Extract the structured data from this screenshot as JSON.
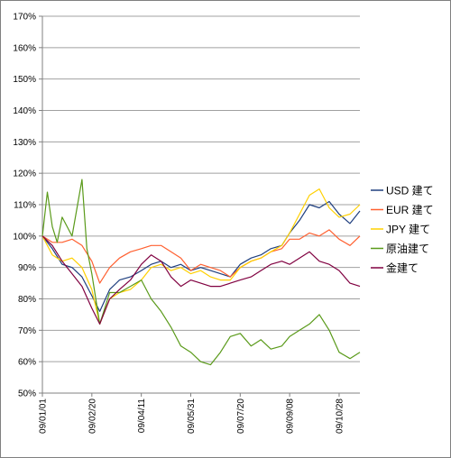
{
  "chart_data": {
    "type": "line",
    "title": "",
    "xlabel": "",
    "ylabel": "",
    "ylim": [
      50,
      170
    ],
    "y_ticks": [
      50,
      60,
      70,
      80,
      90,
      100,
      110,
      120,
      130,
      140,
      150,
      160,
      170
    ],
    "y_tick_format": "percent",
    "x_tick_labels": [
      "09/01/01",
      "09/02/20",
      "09/04/11",
      "09/05/31",
      "09/07/20",
      "09/09/08",
      "09/10/28"
    ],
    "grid": "horizontal",
    "legend_position": "right",
    "series": [
      {
        "name": "USD 建て",
        "color": "#1f3f7f",
        "x": [
          "09/01/01",
          "09/01/11",
          "09/01/21",
          "09/01/31",
          "09/02/10",
          "09/02/20",
          "09/02/28",
          "09/03/10",
          "09/03/20",
          "09/03/31",
          "09/04/11",
          "09/04/21",
          "09/05/01",
          "09/05/11",
          "09/05/21",
          "09/05/31",
          "09/06/10",
          "09/06/20",
          "09/06/30",
          "09/07/10",
          "09/07/20",
          "09/07/31",
          "09/08/10",
          "09/08/20",
          "09/08/31",
          "09/09/08",
          "09/09/18",
          "09/09/28",
          "09/10/08",
          "09/10/18",
          "09/10/28",
          "09/11/08",
          "09/11/18"
        ],
        "values": [
          100,
          96,
          91,
          90,
          87,
          81,
          76,
          83,
          86,
          87,
          89,
          91,
          92,
          90,
          91,
          89,
          90,
          89,
          88,
          87,
          91,
          93,
          94,
          96,
          97,
          101,
          105,
          110,
          109,
          111,
          107,
          104,
          108
        ]
      },
      {
        "name": "EUR 建て",
        "color": "#ff6030",
        "x": [
          "09/01/01",
          "09/01/11",
          "09/01/21",
          "09/01/31",
          "09/02/10",
          "09/02/20",
          "09/02/28",
          "09/03/10",
          "09/03/20",
          "09/03/31",
          "09/04/11",
          "09/04/21",
          "09/05/01",
          "09/05/11",
          "09/05/21",
          "09/05/31",
          "09/06/10",
          "09/06/20",
          "09/06/30",
          "09/07/10",
          "09/07/20",
          "09/07/31",
          "09/08/10",
          "09/08/20",
          "09/08/31",
          "09/09/08",
          "09/09/18",
          "09/09/28",
          "09/10/08",
          "09/10/18",
          "09/10/28",
          "09/11/08",
          "09/11/18"
        ],
        "values": [
          100,
          98,
          98,
          99,
          97,
          92,
          85,
          90,
          93,
          95,
          96,
          97,
          97,
          95,
          93,
          89,
          91,
          90,
          89,
          87,
          90,
          92,
          93,
          95,
          96,
          99,
          99,
          101,
          100,
          102,
          99,
          97,
          100
        ]
      },
      {
        "name": "JPY 建て",
        "color": "#ffd000",
        "x": [
          "09/01/01",
          "09/01/11",
          "09/01/21",
          "09/01/31",
          "09/02/10",
          "09/02/20",
          "09/02/28",
          "09/03/10",
          "09/03/20",
          "09/03/31",
          "09/04/11",
          "09/04/21",
          "09/05/01",
          "09/05/11",
          "09/05/21",
          "09/05/31",
          "09/06/10",
          "09/06/20",
          "09/06/30",
          "09/07/10",
          "09/07/20",
          "09/07/31",
          "09/08/10",
          "09/08/20",
          "09/08/31",
          "09/09/08",
          "09/09/18",
          "09/09/28",
          "09/10/08",
          "09/10/18",
          "09/10/28",
          "09/11/08",
          "09/11/18"
        ],
        "values": [
          100,
          94,
          92,
          93,
          90,
          83,
          72,
          80,
          82,
          83,
          86,
          90,
          91,
          89,
          90,
          88,
          89,
          87,
          86,
          86,
          90,
          92,
          93,
          95,
          97,
          101,
          107,
          113,
          115,
          109,
          106,
          107,
          110
        ]
      },
      {
        "name": "原油建て",
        "color": "#5a9a1a",
        "x": [
          "09/01/01",
          "09/01/06",
          "09/01/11",
          "09/01/16",
          "09/01/21",
          "09/01/31",
          "09/02/10",
          "09/02/15",
          "09/02/20",
          "09/02/28",
          "09/03/10",
          "09/03/20",
          "09/03/31",
          "09/04/11",
          "09/04/21",
          "09/05/01",
          "09/05/11",
          "09/05/21",
          "09/05/31",
          "09/06/10",
          "09/06/20",
          "09/06/30",
          "09/07/10",
          "09/07/20",
          "09/07/31",
          "09/08/10",
          "09/08/20",
          "09/08/31",
          "09/09/08",
          "09/09/18",
          "09/09/28",
          "09/10/08",
          "09/10/18",
          "09/10/28",
          "09/11/08",
          "09/11/18"
        ],
        "values": [
          100,
          114,
          103,
          98,
          106,
          100,
          118,
          96,
          88,
          72,
          82,
          82,
          84,
          86,
          80,
          76,
          71,
          65,
          63,
          60,
          59,
          63,
          68,
          69,
          65,
          67,
          64,
          65,
          68,
          70,
          72,
          75,
          70,
          63,
          61,
          63
        ]
      },
      {
        "name": "金建て",
        "color": "#800040",
        "x": [
          "09/01/01",
          "09/01/11",
          "09/01/21",
          "09/01/31",
          "09/02/10",
          "09/02/20",
          "09/02/28",
          "09/03/10",
          "09/03/20",
          "09/03/31",
          "09/04/11",
          "09/04/21",
          "09/05/01",
          "09/05/11",
          "09/05/21",
          "09/05/31",
          "09/06/10",
          "09/06/20",
          "09/06/30",
          "09/07/10",
          "09/07/20",
          "09/07/31",
          "09/08/10",
          "09/08/20",
          "09/08/31",
          "09/09/08",
          "09/09/18",
          "09/09/28",
          "09/10/08",
          "09/10/18",
          "09/10/28",
          "09/11/08",
          "09/11/18"
        ],
        "values": [
          100,
          97,
          92,
          88,
          84,
          77,
          72,
          80,
          83,
          86,
          91,
          94,
          92,
          87,
          84,
          86,
          85,
          84,
          84,
          85,
          86,
          87,
          89,
          91,
          92,
          91,
          93,
          95,
          92,
          91,
          89,
          85,
          84
        ]
      }
    ]
  }
}
